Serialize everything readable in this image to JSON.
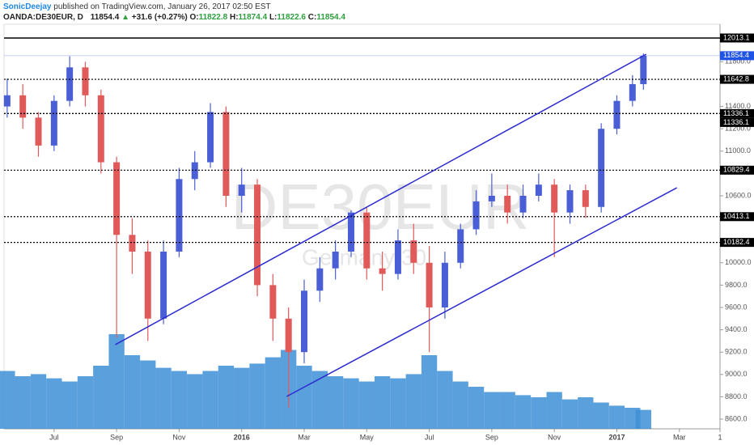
{
  "header": {
    "user": "SonicDeejay",
    "published": "published on TradingView.com, January 26, 2017 02:50 EST",
    "symbol": "OANDA:DE30EUR, D",
    "last": "11854.4",
    "change": "+31.6 (+0.27%)",
    "o_label": "O:",
    "o": "11822.8",
    "h_label": "H:",
    "h": "11874.4",
    "l_label": "L:",
    "l": "11822.6",
    "c_label": "C:",
    "c": "11854.4"
  },
  "chart_data": {
    "type": "candlestick",
    "watermark": "DE30EUR",
    "watermark_sub": "Germany 30",
    "up_color": "#4a5fd6",
    "down_color": "#e15a5a",
    "volume_color": "#3d8fd6",
    "x": [
      -1.5,
      -1,
      -0.5,
      0,
      0.5,
      1,
      1.5,
      2,
      2.5,
      3,
      3.5,
      4,
      4.5,
      5,
      5.5,
      6,
      6.5,
      7,
      7.5,
      8,
      8.5,
      9,
      9.5,
      10,
      10.5,
      11,
      11.5,
      12,
      12.5,
      13,
      13.5,
      14,
      14.5,
      15,
      15.5,
      16,
      16.5,
      17,
      17.5,
      18,
      18.5,
      18.85
    ],
    "open": [
      11400,
      11500,
      11300,
      11050,
      11450,
      11750,
      11500,
      10900,
      10250,
      10100,
      9500,
      10100,
      10750,
      10900,
      11350,
      10600,
      10700,
      9800,
      9500,
      9200,
      9750,
      9950,
      10100,
      10450,
      9950,
      9900,
      10200,
      10000,
      9600,
      10000,
      10300,
      10550,
      10600,
      10450,
      10600,
      10700,
      10450,
      10650,
      10500,
      11200,
      11450,
      11600
    ],
    "high": [
      11650,
      11600,
      11350,
      11500,
      11850,
      11800,
      11550,
      10950,
      10400,
      10200,
      10200,
      10850,
      11000,
      11430,
      11400,
      10850,
      10750,
      9900,
      9600,
      9850,
      10050,
      10200,
      10470,
      10500,
      10100,
      10300,
      10350,
      10150,
      10100,
      10350,
      10650,
      10800,
      10700,
      10700,
      10800,
      10750,
      10700,
      10700,
      11250,
      11500,
      11680,
      11874.4
    ],
    "low": [
      11300,
      11200,
      10950,
      11000,
      11400,
      11400,
      10800,
      9330,
      9900,
      9300,
      9450,
      10050,
      10650,
      10850,
      10500,
      10450,
      9700,
      9300,
      8700,
      9100,
      9650,
      9850,
      10050,
      9850,
      9750,
      9850,
      9900,
      9200,
      9500,
      9950,
      10250,
      10500,
      10350,
      10400,
      10550,
      10050,
      10350,
      10400,
      10450,
      11150,
      11400,
      11550
    ],
    "close": [
      11500,
      11300,
      11050,
      11450,
      11750,
      11500,
      10900,
      10250,
      10100,
      9500,
      10100,
      10750,
      10900,
      11350,
      10600,
      10700,
      9800,
      9500,
      9200,
      9750,
      9950,
      10100,
      10450,
      9950,
      9900,
      10200,
      10000,
      9600,
      10000,
      10300,
      10550,
      10600,
      10450,
      10600,
      10700,
      10450,
      10650,
      10500,
      11200,
      11450,
      11600,
      11854.4
    ],
    "volume": [
      55,
      50,
      52,
      48,
      45,
      50,
      60,
      90,
      70,
      65,
      58,
      55,
      52,
      55,
      60,
      58,
      62,
      68,
      75,
      60,
      55,
      50,
      48,
      45,
      50,
      48,
      52,
      70,
      55,
      45,
      40,
      35,
      35,
      32,
      30,
      35,
      28,
      30,
      25,
      22,
      20,
      18
    ],
    "vlim": [
      0,
      100
    ],
    "xlim": [
      -1.6,
      21.3
    ],
    "xticks": [
      {
        "value": 0,
        "label": "Jul"
      },
      {
        "value": 2,
        "label": "Sep"
      },
      {
        "value": 4,
        "label": "Nov"
      },
      {
        "value": 6,
        "label": "2016"
      },
      {
        "value": 8,
        "label": "Mar"
      },
      {
        "value": 10,
        "label": "May"
      },
      {
        "value": 12,
        "label": "Jul"
      },
      {
        "value": 14,
        "label": "Sep"
      },
      {
        "value": 16,
        "label": "Nov"
      },
      {
        "value": 18,
        "label": "2017"
      },
      {
        "value": 20,
        "label": "Mar"
      },
      {
        "value": 21.3,
        "label": "1"
      }
    ],
    "ylim": [
      8513,
      12136
    ],
    "yticks": [
      {
        "value": 8600,
        "label": "8600.0"
      },
      {
        "value": 8800,
        "label": "8800.0"
      },
      {
        "value": 9000,
        "label": "9000.0"
      },
      {
        "value": 9200,
        "label": "9200.0"
      },
      {
        "value": 9400,
        "label": "9400.0"
      },
      {
        "value": 9600,
        "label": "9600.0"
      },
      {
        "value": 9800,
        "label": "9800.0"
      },
      {
        "value": 10000,
        "label": "10000.0"
      },
      {
        "value": 10600,
        "label": "10600.0"
      },
      {
        "value": 11000,
        "label": "11000.0"
      },
      {
        "value": 11200,
        "label": "11200.0"
      },
      {
        "value": 11400,
        "label": "11400.0"
      },
      {
        "value": 11800,
        "label": "11800.0"
      }
    ],
    "levels": [
      {
        "value": 12013.1,
        "style": "solid",
        "color": "#000000"
      },
      {
        "value": 11854.4,
        "style": "thin",
        "color": "#1e53e5"
      },
      {
        "value": 11642.8,
        "style": "dotted",
        "color": "#000000"
      },
      {
        "value": 11336.1,
        "style": "dotted",
        "color": "#000000"
      },
      {
        "value": 11336.1,
        "style": "dotted",
        "color": "#000000"
      },
      {
        "value": 10829.4,
        "style": "dotted",
        "color": "#000000"
      },
      {
        "value": 10413.1,
        "style": "dotted",
        "color": "#000000"
      },
      {
        "value": 10182.4,
        "style": "dotted",
        "color": "#000000"
      }
    ],
    "trendline_color": "#2b2bd0",
    "trendlines": [
      {
        "x": [
          1.96,
          18.94
        ],
        "y": [
          9267,
          11868
        ]
      },
      {
        "x": [
          7.44,
          19.92
        ],
        "y": [
          8803,
          10672
        ]
      }
    ]
  }
}
